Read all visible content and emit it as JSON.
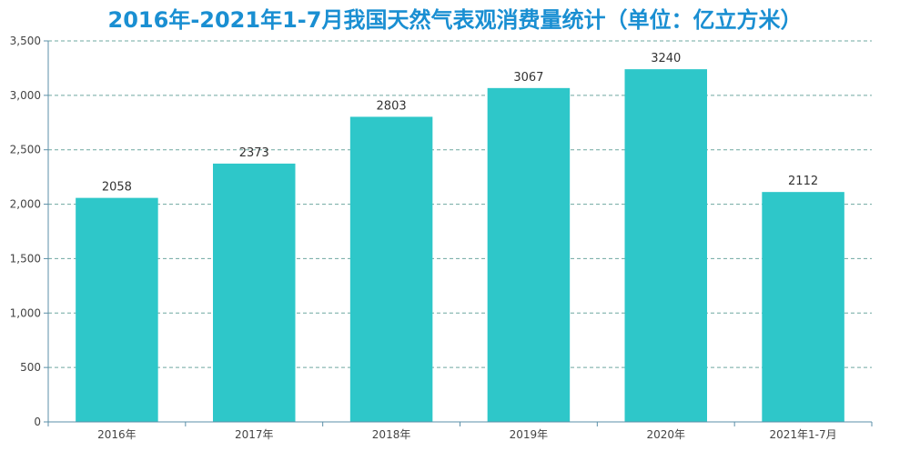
{
  "chart_data": {
    "type": "bar",
    "title": "2016年-2021年1-7月我国天然气表观消费量统计（单位：亿立方米）",
    "categories": [
      "2016年",
      "2017年",
      "2018年",
      "2019年",
      "2020年",
      "2021年1-7月"
    ],
    "values": [
      2058,
      2373,
      2803,
      3067,
      3240,
      2112
    ],
    "data_labels": [
      "2058",
      "2373",
      "2803",
      "3067",
      "3240",
      "2112"
    ],
    "ylim": [
      0,
      3500
    ],
    "y_ticks": [
      0,
      500,
      1000,
      1500,
      2000,
      2500,
      3000,
      3500
    ],
    "y_tick_labels": [
      "0",
      "500",
      "1,000",
      "1,500",
      "2,000",
      "2,500",
      "3,000",
      "3,500"
    ],
    "grid": true,
    "legend": "none",
    "colors": {
      "bar": "#2ec7c9",
      "title": "#1a8fd2",
      "grid": "#6fa8a0",
      "axis": "#5b8fa8"
    }
  }
}
